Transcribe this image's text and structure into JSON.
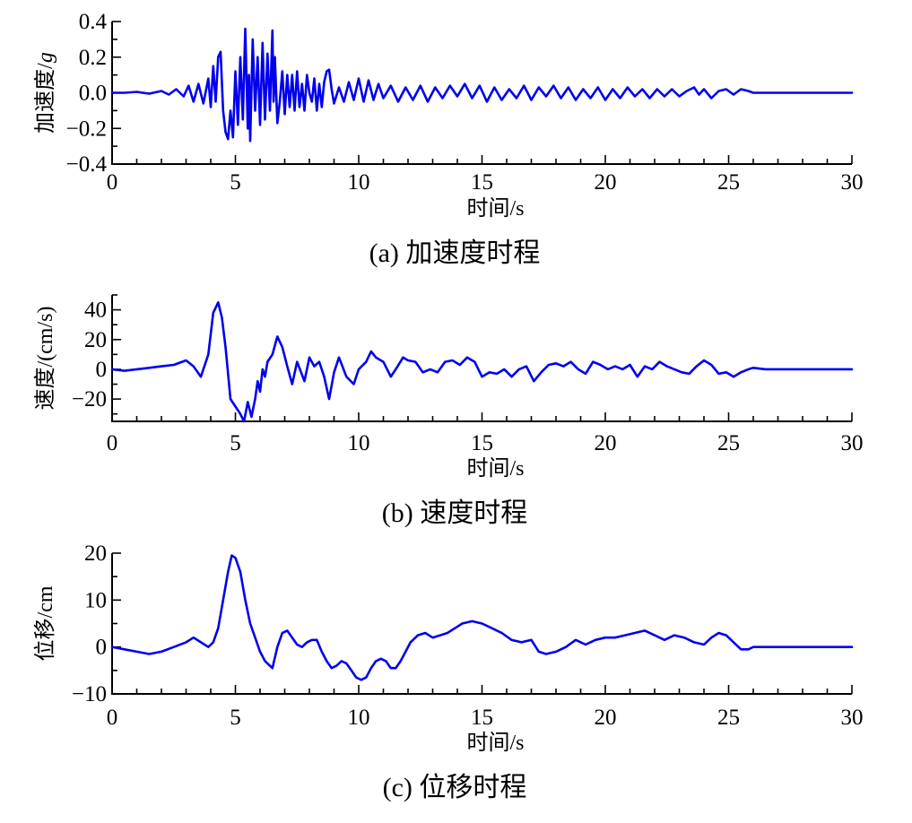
{
  "chart_data": [
    {
      "type": "line",
      "caption": "(a)  加速度时程",
      "xlabel": "时间/s",
      "ylabel": "加速度/",
      "ylabel_unit": "g",
      "xlim": [
        0,
        30
      ],
      "ylim": [
        -0.4,
        0.4
      ],
      "xticks": [
        0,
        5,
        10,
        15,
        20,
        25,
        30
      ],
      "xtick_labels": [
        "0",
        "5",
        "10",
        "15",
        "20",
        "25",
        "30"
      ],
      "yticks": [
        -0.4,
        -0.2,
        0.0,
        0.2,
        0.4
      ],
      "ytick_labels": [
        "−0.4",
        "−0.2",
        "0.0",
        "0.2",
        "0.4"
      ],
      "color": "#0000ee",
      "series": [
        {
          "x": [
            0,
            0.5,
            1,
            1.5,
            2,
            2.3,
            2.6,
            2.9,
            3.1,
            3.3,
            3.5,
            3.7,
            3.9,
            4.0,
            4.1,
            4.2,
            4.3,
            4.4,
            4.5,
            4.6,
            4.7,
            4.8,
            4.9,
            5.0,
            5.1,
            5.2,
            5.3,
            5.4,
            5.5,
            5.55,
            5.6,
            5.7,
            5.8,
            5.9,
            6.0,
            6.1,
            6.2,
            6.3,
            6.4,
            6.5,
            6.55,
            6.6,
            6.7,
            6.8,
            6.9,
            7.0,
            7.1,
            7.2,
            7.3,
            7.4,
            7.5,
            7.6,
            7.7,
            7.8,
            7.9,
            8.0,
            8.1,
            8.2,
            8.3,
            8.4,
            8.5,
            8.6,
            8.7,
            8.8,
            8.9,
            9.0,
            9.2,
            9.4,
            9.6,
            9.8,
            10.0,
            10.2,
            10.4,
            10.6,
            10.8,
            11.0,
            11.3,
            11.6,
            11.9,
            12.2,
            12.5,
            12.8,
            13.1,
            13.4,
            13.7,
            14.0,
            14.3,
            14.6,
            14.9,
            15.2,
            15.5,
            15.8,
            16.1,
            16.4,
            16.7,
            17.0,
            17.3,
            17.6,
            17.9,
            18.2,
            18.5,
            18.8,
            19.1,
            19.4,
            19.7,
            20.0,
            20.3,
            20.6,
            20.9,
            21.2,
            21.5,
            21.8,
            22.1,
            22.4,
            22.7,
            23.0,
            23.3,
            23.6,
            23.8,
            24.0,
            24.3,
            24.6,
            24.9,
            25.2,
            25.5,
            25.8,
            26.0,
            26.5,
            27,
            28,
            29,
            30
          ],
          "y": [
            0,
            0,
            0.005,
            -0.005,
            0.01,
            -0.01,
            0.02,
            -0.02,
            0.04,
            -0.05,
            0.05,
            -0.06,
            0.08,
            -0.08,
            0.15,
            -0.05,
            0.2,
            0.23,
            -0.1,
            -0.22,
            -0.26,
            -0.1,
            -0.25,
            0.12,
            -0.18,
            0.2,
            -0.15,
            0.36,
            -0.2,
            0.1,
            -0.27,
            0.3,
            -0.1,
            0.2,
            -0.18,
            0.28,
            -0.15,
            0.22,
            -0.1,
            0.35,
            -0.05,
            0.2,
            -0.17,
            -0.05,
            0.12,
            -0.12,
            0.1,
            -0.08,
            0.1,
            -0.1,
            0.12,
            -0.08,
            0.05,
            -0.1,
            0.1,
            0.0,
            -0.05,
            0.08,
            -0.1,
            0.05,
            -0.08,
            0.06,
            0.12,
            0.13,
            0.02,
            -0.06,
            0.03,
            -0.05,
            0.06,
            -0.04,
            0.08,
            -0.05,
            0.07,
            -0.04,
            0.05,
            -0.03,
            0.04,
            -0.05,
            0.03,
            -0.04,
            0.04,
            -0.05,
            0.03,
            -0.03,
            0.04,
            -0.02,
            0.05,
            -0.03,
            0.04,
            -0.05,
            0.03,
            -0.04,
            0.02,
            -0.03,
            0.04,
            -0.04,
            0.03,
            -0.02,
            0.04,
            -0.03,
            0.03,
            -0.04,
            0.02,
            -0.03,
            0.03,
            -0.04,
            0.02,
            -0.03,
            0.03,
            -0.02,
            0.02,
            -0.03,
            0.02,
            -0.02,
            0.02,
            -0.02,
            0.01,
            0.03,
            -0.01,
            0.02,
            -0.03,
            0.01,
            0.02,
            -0.01,
            0.02,
            0.01,
            0,
            0,
            0,
            0,
            0,
            0
          ]
        }
      ]
    },
    {
      "type": "line",
      "caption": "(b)  速度时程",
      "xlabel": "时间/s",
      "ylabel": "速度/(cm/s)",
      "xlim": [
        0,
        30
      ],
      "ylim": [
        -35,
        50
      ],
      "xticks": [
        0,
        5,
        10,
        15,
        20,
        25,
        30
      ],
      "xtick_labels": [
        "0",
        "5",
        "10",
        "15",
        "20",
        "25",
        "30"
      ],
      "yticks": [
        -20,
        0,
        20,
        40
      ],
      "ytick_labels": [
        "−20",
        "0",
        "20",
        "40"
      ],
      "color": "#0000ee",
      "series": [
        {
          "x": [
            0,
            0.5,
            1,
            1.5,
            2,
            2.5,
            3,
            3.3,
            3.6,
            3.9,
            4.1,
            4.3,
            4.45,
            4.6,
            4.8,
            5.0,
            5.2,
            5.35,
            5.5,
            5.65,
            5.8,
            5.9,
            6.0,
            6.1,
            6.2,
            6.3,
            6.5,
            6.7,
            6.9,
            7.1,
            7.3,
            7.5,
            7.8,
            8.0,
            8.2,
            8.4,
            8.6,
            8.8,
            9.0,
            9.2,
            9.5,
            9.8,
            10.0,
            10.3,
            10.5,
            10.7,
            11.0,
            11.3,
            11.5,
            11.8,
            12.0,
            12.3,
            12.6,
            12.9,
            13.2,
            13.5,
            13.8,
            14.1,
            14.4,
            14.7,
            15.0,
            15.3,
            15.6,
            15.9,
            16.2,
            16.5,
            16.8,
            17.1,
            17.4,
            17.7,
            18.0,
            18.3,
            18.6,
            18.9,
            19.2,
            19.5,
            19.8,
            20.1,
            20.4,
            20.7,
            21.0,
            21.3,
            21.6,
            21.9,
            22.2,
            22.5,
            22.8,
            23.1,
            23.4,
            23.7,
            24.0,
            24.3,
            24.6,
            24.9,
            25.2,
            25.5,
            25.8,
            26.0,
            26.5,
            27,
            28,
            29,
            30
          ],
          "y": [
            0,
            -1,
            0,
            1,
            2,
            3,
            6,
            2,
            -5,
            10,
            38,
            45,
            35,
            15,
            -20,
            -25,
            -30,
            -35,
            -22,
            -32,
            -20,
            -8,
            -15,
            0,
            -5,
            5,
            10,
            22,
            15,
            2,
            -10,
            5,
            -8,
            8,
            2,
            5,
            -5,
            -20,
            -2,
            8,
            -5,
            -10,
            0,
            5,
            12,
            8,
            5,
            -5,
            0,
            8,
            6,
            5,
            -2,
            0,
            -2,
            5,
            6,
            3,
            8,
            5,
            -5,
            -2,
            -3,
            0,
            -5,
            0,
            2,
            -8,
            -2,
            3,
            4,
            2,
            5,
            0,
            -3,
            5,
            3,
            0,
            2,
            0,
            3,
            -5,
            2,
            0,
            5,
            2,
            0,
            -2,
            -3,
            2,
            6,
            3,
            -3,
            -2,
            -5,
            -2,
            0,
            1,
            0,
            0,
            0,
            0,
            0
          ]
        }
      ]
    },
    {
      "type": "line",
      "caption": "(c)  位移时程",
      "xlabel": "时间/s",
      "ylabel": "位移/cm",
      "xlim": [
        0,
        30
      ],
      "ylim": [
        -10,
        20
      ],
      "xticks": [
        0,
        5,
        10,
        15,
        20,
        25,
        30
      ],
      "xtick_labels": [
        "0",
        "5",
        "10",
        "15",
        "20",
        "25",
        "30"
      ],
      "yticks": [
        -10,
        0,
        10,
        20
      ],
      "ytick_labels": [
        "−10",
        "0",
        "10",
        "20"
      ],
      "color": "#0000ee",
      "series": [
        {
          "x": [
            0,
            0.5,
            1,
            1.5,
            2,
            2.5,
            3,
            3.3,
            3.6,
            3.9,
            4.1,
            4.3,
            4.5,
            4.7,
            4.85,
            5.0,
            5.2,
            5.4,
            5.6,
            5.8,
            6.0,
            6.2,
            6.5,
            6.7,
            6.9,
            7.1,
            7.3,
            7.5,
            7.7,
            7.9,
            8.1,
            8.3,
            8.5,
            8.7,
            8.9,
            9.1,
            9.3,
            9.5,
            9.7,
            9.9,
            10.1,
            10.3,
            10.5,
            10.7,
            10.9,
            11.1,
            11.3,
            11.5,
            11.7,
            11.9,
            12.1,
            12.4,
            12.7,
            13.0,
            13.3,
            13.6,
            13.9,
            14.2,
            14.6,
            15.0,
            15.4,
            15.8,
            16.2,
            16.6,
            17.0,
            17.3,
            17.6,
            18.0,
            18.4,
            18.8,
            19.2,
            19.6,
            20.0,
            20.4,
            20.8,
            21.2,
            21.6,
            22.0,
            22.4,
            22.8,
            23.2,
            23.6,
            24.0,
            24.3,
            24.6,
            24.9,
            25.2,
            25.5,
            25.8,
            26.0,
            26.5,
            27,
            28,
            29,
            30
          ],
          "y": [
            0,
            -0.5,
            -1,
            -1.5,
            -1,
            0,
            1,
            2,
            1,
            0,
            1,
            4,
            10,
            16,
            19.5,
            19,
            16,
            10,
            5,
            2,
            -1,
            -3,
            -4.5,
            0,
            3,
            3.5,
            2,
            0.5,
            0,
            1,
            1.5,
            1.5,
            -1,
            -3,
            -4.5,
            -4,
            -3,
            -3.5,
            -5,
            -6.5,
            -7,
            -6.5,
            -4.5,
            -3,
            -2.5,
            -3,
            -4.5,
            -4.5,
            -3,
            -1,
            1,
            2.5,
            3,
            2,
            2.5,
            3,
            4,
            5,
            5.5,
            5,
            4,
            3,
            1.5,
            1,
            1.5,
            -1,
            -1.5,
            -1,
            0,
            1.5,
            0.5,
            1.5,
            2,
            2,
            2.5,
            3,
            3.5,
            2.5,
            1.5,
            2.5,
            2,
            1,
            0.5,
            2,
            3,
            2.5,
            1,
            -0.5,
            -0.5,
            0,
            0,
            0,
            0,
            0,
            0
          ]
        }
      ]
    }
  ]
}
